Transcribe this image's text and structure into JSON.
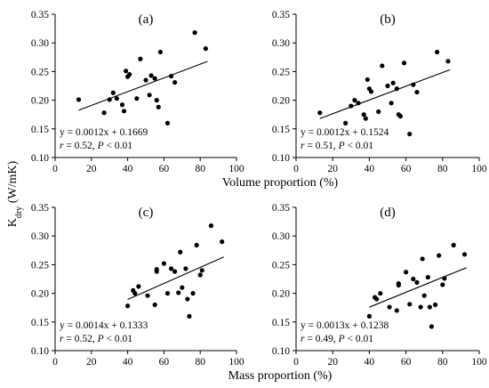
{
  "figure": {
    "ylabel": "K",
    "ylabel_sub": "dry",
    "ylabel_unit": " (W/mK)",
    "xlabel_top": "Volume proportion (%)",
    "xlabel_bottom": "Mass proportion (%)"
  },
  "chart_data": [
    {
      "type": "scatter",
      "panel_label": "(a)",
      "xlabel": "Volume proportion (%)",
      "ylabel": "Kdry (W/mK)",
      "xlim": [
        0,
        100
      ],
      "ylim": [
        0.1,
        0.35
      ],
      "xticks": [
        "0",
        "20",
        "40",
        "60",
        "80",
        "100"
      ],
      "yticks": [
        "0.10",
        "0.15",
        "0.20",
        "0.25",
        "0.30",
        "0.35"
      ],
      "equation": "y = 0.0012x + 0.1669",
      "stats": {
        "r": "r",
        "r_value": " = 0.52, ",
        "p": "P",
        "p_value": " < 0.01"
      },
      "trendline": {
        "slope": 0.0012,
        "intercept": 0.1669,
        "x_range": [
          13,
          84
        ]
      },
      "points": [
        [
          13,
          0.201
        ],
        [
          27,
          0.178
        ],
        [
          30,
          0.201
        ],
        [
          32,
          0.213
        ],
        [
          34,
          0.203
        ],
        [
          37,
          0.192
        ],
        [
          38,
          0.181
        ],
        [
          39,
          0.251
        ],
        [
          40,
          0.241
        ],
        [
          41,
          0.245
        ],
        [
          45,
          0.203
        ],
        [
          47,
          0.272
        ],
        [
          50,
          0.235
        ],
        [
          52,
          0.209
        ],
        [
          53,
          0.243
        ],
        [
          55,
          0.238
        ],
        [
          56,
          0.2
        ],
        [
          57,
          0.188
        ],
        [
          58,
          0.284
        ],
        [
          62,
          0.16
        ],
        [
          64,
          0.242
        ],
        [
          66,
          0.231
        ],
        [
          77,
          0.318
        ],
        [
          83,
          0.29
        ]
      ]
    },
    {
      "type": "scatter",
      "panel_label": "(b)",
      "xlabel": "Volume proportion (%)",
      "ylabel": "Kdry (W/mK)",
      "xlim": [
        0,
        100
      ],
      "ylim": [
        0.1,
        0.35
      ],
      "xticks": [
        "0",
        "20",
        "40",
        "60",
        "80",
        "100"
      ],
      "yticks": [
        "0.10",
        "0.15",
        "0.20",
        "0.25",
        "0.30",
        "0.35"
      ],
      "equation": "y = 0.0012x + 0.1524",
      "stats": {
        "r": "r",
        "r_value": " = 0.51, ",
        "p": "P",
        "p_value": " < 0.01"
      },
      "trendline": {
        "slope": 0.0012,
        "intercept": 0.1524,
        "x_range": [
          13,
          84
        ]
      },
      "points": [
        [
          13,
          0.178
        ],
        [
          27,
          0.16
        ],
        [
          30,
          0.19
        ],
        [
          32,
          0.2
        ],
        [
          34,
          0.195
        ],
        [
          37,
          0.175
        ],
        [
          38,
          0.168
        ],
        [
          39,
          0.236
        ],
        [
          40,
          0.22
        ],
        [
          41,
          0.215
        ],
        [
          45,
          0.18
        ],
        [
          47,
          0.26
        ],
        [
          50,
          0.225
        ],
        [
          52,
          0.195
        ],
        [
          53,
          0.23
        ],
        [
          55,
          0.22
        ],
        [
          56,
          0.175
        ],
        [
          57,
          0.172
        ],
        [
          59,
          0.265
        ],
        [
          62,
          0.141
        ],
        [
          64,
          0.227
        ],
        [
          66,
          0.214
        ],
        [
          77,
          0.284
        ],
        [
          83,
          0.268
        ]
      ]
    },
    {
      "type": "scatter",
      "panel_label": "(c)",
      "xlabel": "Mass proportion (%)",
      "ylabel": "Kdry (W/mK)",
      "xlim": [
        0,
        100
      ],
      "ylim": [
        0.1,
        0.35
      ],
      "xticks": [
        "0",
        "20",
        "40",
        "60",
        "80",
        "100"
      ],
      "yticks": [
        "0.10",
        "0.15",
        "0.20",
        "0.25",
        "0.30",
        "0.35"
      ],
      "equation": "y = 0.0014x + 0.1333",
      "stats": {
        "r": "r",
        "r_value": " = 0.52, ",
        "p": "P",
        "p_value": " < 0.01"
      },
      "trendline": {
        "slope": 0.0014,
        "intercept": 0.1333,
        "x_range": [
          40,
          93
        ]
      },
      "points": [
        [
          40,
          0.178
        ],
        [
          43,
          0.205
        ],
        [
          44,
          0.2
        ],
        [
          46,
          0.212
        ],
        [
          51,
          0.196
        ],
        [
          55,
          0.18
        ],
        [
          56,
          0.242
        ],
        [
          56,
          0.238
        ],
        [
          60,
          0.252
        ],
        [
          62,
          0.2
        ],
        [
          64,
          0.243
        ],
        [
          66,
          0.238
        ],
        [
          68,
          0.201
        ],
        [
          69,
          0.272
        ],
        [
          70,
          0.21
        ],
        [
          72,
          0.243
        ],
        [
          73,
          0.19
        ],
        [
          74,
          0.16
        ],
        [
          76,
          0.2
        ],
        [
          78,
          0.284
        ],
        [
          80,
          0.232
        ],
        [
          81,
          0.24
        ],
        [
          86,
          0.318
        ],
        [
          92,
          0.29
        ]
      ]
    },
    {
      "type": "scatter",
      "panel_label": "(d)",
      "xlabel": "Mass proportion (%)",
      "ylabel": "Kdry (W/mK)",
      "xlim": [
        0,
        100
      ],
      "ylim": [
        0.1,
        0.35
      ],
      "xticks": [
        "0",
        "20",
        "40",
        "60",
        "80",
        "100"
      ],
      "yticks": [
        "0.10",
        "0.15",
        "0.20",
        "0.25",
        "0.30",
        "0.35"
      ],
      "equation": "y = 0.0013x + 0.1238",
      "stats": {
        "r": "r",
        "r_value": " = 0.49, ",
        "p": "P",
        "p_value": " < 0.01"
      },
      "trendline": {
        "slope": 0.0013,
        "intercept": 0.1238,
        "x_range": [
          40,
          93
        ]
      },
      "points": [
        [
          40,
          0.16
        ],
        [
          43,
          0.193
        ],
        [
          44,
          0.19
        ],
        [
          46,
          0.2
        ],
        [
          51,
          0.176
        ],
        [
          55,
          0.17
        ],
        [
          56,
          0.217
        ],
        [
          56,
          0.214
        ],
        [
          60,
          0.237
        ],
        [
          62,
          0.181
        ],
        [
          64,
          0.225
        ],
        [
          66,
          0.219
        ],
        [
          68,
          0.176
        ],
        [
          69,
          0.26
        ],
        [
          70,
          0.196
        ],
        [
          72,
          0.228
        ],
        [
          73,
          0.176
        ],
        [
          74,
          0.142
        ],
        [
          76,
          0.18
        ],
        [
          78,
          0.266
        ],
        [
          80,
          0.215
        ],
        [
          81,
          0.226
        ],
        [
          86,
          0.284
        ],
        [
          92,
          0.268
        ]
      ]
    }
  ]
}
